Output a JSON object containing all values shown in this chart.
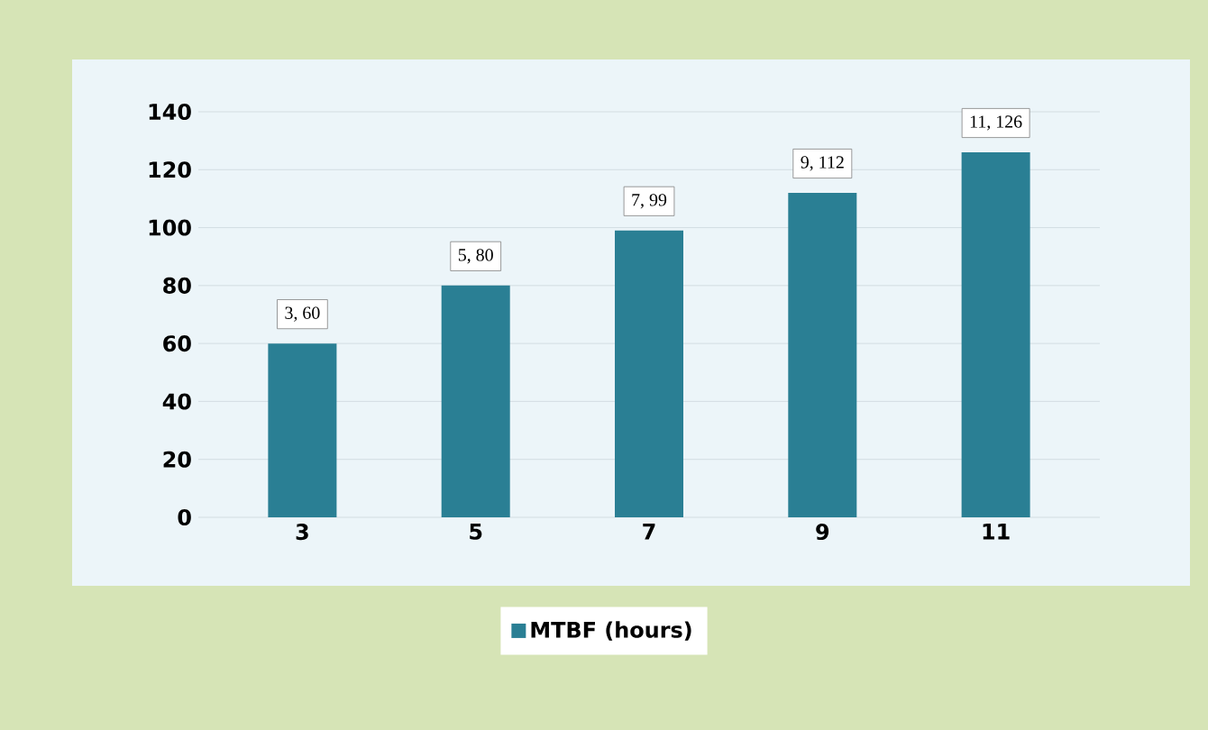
{
  "chart_data": {
    "type": "bar",
    "categories": [
      "3",
      "5",
      "7",
      "9",
      "11"
    ],
    "series": [
      {
        "name": "MTBF (hours)",
        "color": "#2a7f94",
        "values": [
          60,
          80,
          99,
          112,
          126
        ],
        "value_labels": [
          "3, 60",
          "5, 80",
          "7, 99",
          "9, 112",
          "11, 126"
        ]
      }
    ],
    "ylim": [
      0,
      140
    ],
    "yticks": [
      0,
      20,
      40,
      60,
      80,
      100,
      120,
      140
    ],
    "grid": "y",
    "legend": "bottom"
  }
}
